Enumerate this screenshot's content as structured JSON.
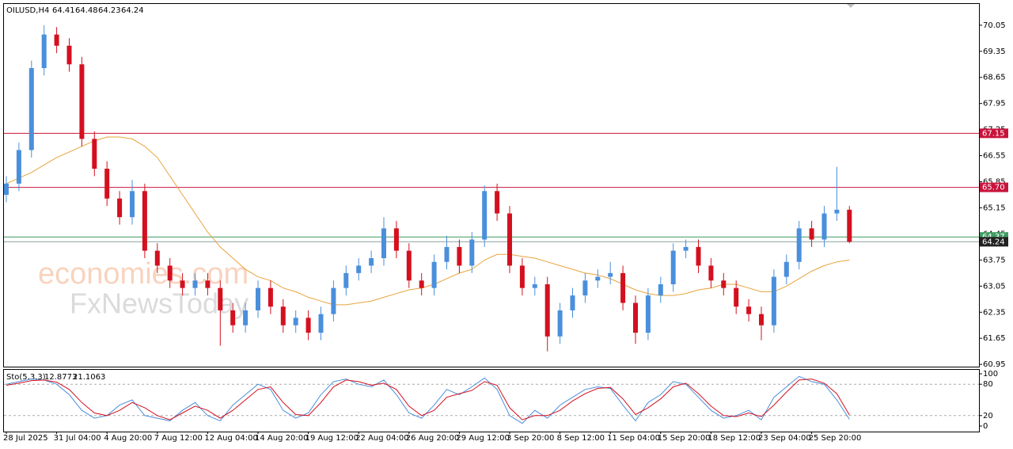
{
  "chart_data": {
    "type": "candlestick",
    "title": "OILUSD,H4",
    "quote": [
      64.41,
      64.48,
      64.23,
      64.24
    ],
    "watermarks": [
      "economies.com",
      "FxNewsToday"
    ],
    "categories": [
      "28 Jul 2025",
      null,
      null,
      null,
      "31 Jul 04:00",
      null,
      null,
      null,
      "4 Aug 20:00",
      null,
      null,
      null,
      "7 Aug 12:00",
      null,
      null,
      null,
      "12 Aug 04:00",
      null,
      null,
      null,
      "14 Aug 20:00",
      null,
      null,
      null,
      "19 Aug 12:00",
      null,
      null,
      null,
      "22 Aug 04:00",
      null,
      null,
      null,
      "26 Aug 20:00",
      null,
      null,
      null,
      "29 Aug 12:00",
      null,
      null,
      null,
      "3 Sep 20:00",
      null,
      null,
      null,
      "8 Sep 12:00",
      null,
      null,
      null,
      "11 Sep 04:00",
      null,
      null,
      null,
      "15 Sep 20:00",
      null,
      null,
      null,
      "18 Sep 12:00",
      null,
      null,
      null,
      "23 Sep 04:00",
      null,
      null,
      null,
      "25 Sep 20:00",
      null,
      null,
      null
    ],
    "opens": [
      65.5,
      65.8,
      66.7,
      68.9,
      69.8,
      69.5,
      69.0,
      67.0,
      66.2,
      65.4,
      64.9,
      65.6,
      64.0,
      63.6,
      63.2,
      63.0,
      63.2,
      63.0,
      62.4,
      62.0,
      62.4,
      63.0,
      62.5,
      62.0,
      62.2,
      61.8,
      62.3,
      63.0,
      63.4,
      63.6,
      63.8,
      64.6,
      64.0,
      63.2,
      63.0,
      63.7,
      64.1,
      63.6,
      64.3,
      65.6,
      65.0,
      63.6,
      63.0,
      63.1,
      61.7,
      62.4,
      62.8,
      63.2,
      63.3,
      63.4,
      62.6,
      61.8,
      62.8,
      63.1,
      64.0,
      64.1,
      63.6,
      63.2,
      63.0,
      62.5,
      62.3,
      62.0,
      63.3,
      63.7,
      64.6,
      64.3,
      65.0,
      65.1
    ],
    "highs": [
      66.0,
      66.9,
      69.1,
      70.05,
      70.0,
      69.7,
      69.2,
      67.2,
      66.4,
      65.6,
      65.9,
      65.8,
      64.2,
      63.8,
      63.4,
      63.4,
      63.4,
      63.2,
      62.6,
      62.6,
      63.2,
      63.2,
      62.7,
      62.4,
      62.4,
      62.5,
      63.2,
      63.6,
      63.8,
      64.0,
      64.9,
      64.8,
      64.2,
      63.4,
      63.9,
      64.4,
      64.3,
      64.5,
      65.75,
      65.8,
      65.2,
      63.8,
      63.3,
      63.3,
      62.6,
      63.0,
      63.4,
      63.5,
      63.7,
      63.6,
      62.8,
      63.0,
      63.3,
      64.2,
      64.3,
      64.3,
      63.8,
      63.4,
      63.2,
      62.7,
      62.5,
      63.5,
      63.9,
      64.8,
      64.8,
      65.2,
      66.25,
      65.2
    ],
    "lows": [
      65.3,
      65.6,
      66.5,
      68.7,
      69.3,
      68.8,
      66.8,
      66.0,
      65.2,
      64.7,
      64.7,
      63.8,
      63.4,
      63.0,
      62.8,
      62.8,
      62.8,
      61.45,
      61.8,
      61.8,
      62.2,
      62.3,
      61.8,
      61.8,
      61.6,
      61.6,
      62.1,
      62.8,
      63.2,
      63.4,
      63.6,
      63.8,
      63.0,
      62.8,
      62.8,
      63.5,
      63.4,
      63.4,
      64.1,
      64.8,
      63.4,
      62.8,
      62.8,
      61.3,
      61.5,
      62.2,
      62.6,
      63.0,
      63.1,
      62.4,
      61.5,
      61.6,
      62.6,
      62.9,
      63.8,
      63.4,
      63.0,
      62.8,
      62.3,
      62.1,
      61.6,
      61.8,
      63.1,
      63.5,
      64.1,
      64.1,
      64.8,
      64.2
    ],
    "closes": [
      65.8,
      66.7,
      68.9,
      69.8,
      69.5,
      69.0,
      67.0,
      66.2,
      65.4,
      64.9,
      65.6,
      64.0,
      63.6,
      63.2,
      63.0,
      63.2,
      63.0,
      62.4,
      62.0,
      62.4,
      63.0,
      62.5,
      62.0,
      62.2,
      61.8,
      62.3,
      63.0,
      63.4,
      63.6,
      63.8,
      64.6,
      64.0,
      63.2,
      63.0,
      63.7,
      64.1,
      63.6,
      64.3,
      65.6,
      65.0,
      63.6,
      63.0,
      63.1,
      61.7,
      62.4,
      62.8,
      63.2,
      63.3,
      63.4,
      62.6,
      61.8,
      62.8,
      63.1,
      64.0,
      64.1,
      63.6,
      63.2,
      63.0,
      62.5,
      62.3,
      62.0,
      63.3,
      63.7,
      64.6,
      64.3,
      65.0,
      65.1,
      64.24
    ],
    "up_color": "#4a8fdc",
    "down_color": "#d4101f",
    "ma": {
      "color": "#e8a33c",
      "values": [
        65.8,
        65.95,
        66.1,
        66.3,
        66.5,
        66.65,
        66.8,
        66.95,
        67.05,
        67.05,
        67.0,
        66.8,
        66.5,
        66.0,
        65.5,
        65.0,
        64.5,
        64.1,
        63.8,
        63.5,
        63.3,
        63.2,
        63.0,
        62.9,
        62.75,
        62.65,
        62.55,
        62.55,
        62.6,
        62.65,
        62.75,
        62.85,
        62.95,
        63.0,
        63.1,
        63.25,
        63.4,
        63.5,
        63.75,
        63.9,
        63.9,
        63.85,
        63.8,
        63.7,
        63.6,
        63.5,
        63.4,
        63.35,
        63.25,
        63.1,
        62.95,
        62.85,
        62.8,
        62.8,
        62.85,
        62.95,
        63.0,
        63.1,
        63.1,
        63.0,
        62.9,
        62.9,
        63.05,
        63.25,
        63.45,
        63.6,
        63.7,
        63.75
      ]
    },
    "ylim": [
      60.89,
      70.62
    ],
    "yticks": [
      70.05,
      69.35,
      68.65,
      67.95,
      67.25,
      66.55,
      65.85,
      65.15,
      64.45,
      63.75,
      63.05,
      62.35,
      61.65,
      60.95
    ],
    "levels": [
      {
        "value": 67.15,
        "color": "#c8143c"
      },
      {
        "value": 65.7,
        "label": "65.70",
        "color": "#c8143c"
      },
      {
        "value": 64.37,
        "color": "#3f9c62"
      }
    ],
    "price_line_color": "#8aa0a0",
    "stochastic": {
      "label": "Sto(5,3,3)",
      "main_color": "#4a8fdc",
      "signal_color": "#d4101f",
      "main_values": [
        80,
        85,
        90,
        88,
        80,
        60,
        30,
        15,
        20,
        40,
        50,
        20,
        15,
        10,
        30,
        45,
        20,
        10,
        40,
        60,
        80,
        70,
        30,
        15,
        25,
        60,
        85,
        90,
        80,
        75,
        88,
        60,
        25,
        15,
        40,
        70,
        60,
        75,
        92,
        70,
        20,
        5,
        30,
        15,
        40,
        55,
        70,
        75,
        72,
        40,
        10,
        45,
        60,
        85,
        80,
        55,
        30,
        15,
        20,
        30,
        12,
        55,
        75,
        95,
        85,
        80,
        50,
        12.8773
      ],
      "signal_values": [
        78,
        82,
        87,
        88,
        84,
        70,
        45,
        25,
        20,
        30,
        45,
        35,
        20,
        12,
        25,
        38,
        30,
        15,
        30,
        50,
        70,
        75,
        45,
        22,
        20,
        45,
        75,
        88,
        85,
        78,
        82,
        70,
        38,
        20,
        30,
        55,
        62,
        68,
        85,
        78,
        35,
        12,
        20,
        20,
        30,
        48,
        62,
        72,
        74,
        52,
        22,
        35,
        52,
        75,
        82,
        62,
        38,
        20,
        18,
        25,
        18,
        40,
        65,
        88,
        90,
        82,
        62,
        21.1063
      ],
      "ylim": [
        -10.6,
        107.6
      ],
      "yticks": [
        100,
        80,
        20,
        0
      ],
      "levels": [
        80,
        20
      ]
    }
  }
}
